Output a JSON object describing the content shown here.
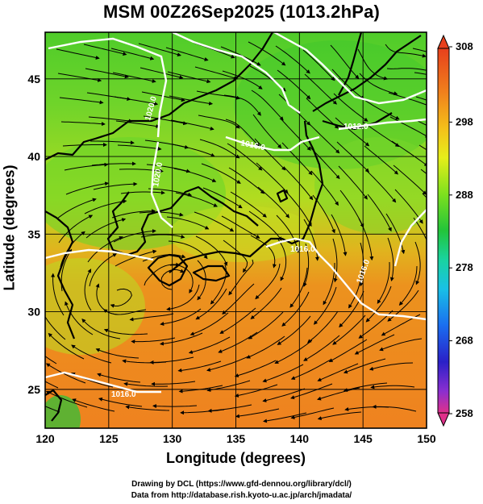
{
  "title": "MSM 00Z26Sep2025 (1013.2hPa)",
  "axes": {
    "xlabel": "Longitude (degrees)",
    "ylabel": "Latitude  (degrees)",
    "x_ticks": [
      "120",
      "125",
      "130",
      "135",
      "140",
      "145",
      "150"
    ],
    "y_ticks": [
      "25",
      "30",
      "35",
      "40",
      "45"
    ]
  },
  "colorbar": {
    "labels": [
      "308",
      "298",
      "288",
      "278",
      "268",
      "258"
    ],
    "colors": [
      "#e0308a",
      "#8a2fd0",
      "#2a20c8",
      "#1a6ef0",
      "#19c0e6",
      "#19d3a0",
      "#22c43a",
      "#7ee01e",
      "#e6ee1a",
      "#f4c01a",
      "#f0801c",
      "#e8401c"
    ]
  },
  "contours": {
    "labels": [
      "1020.0",
      "1020.0",
      "1016.0",
      "1012.0",
      "1016.0",
      "1016.0",
      "1016.0"
    ],
    "color": "#ffffff"
  },
  "map": {
    "lon_range": [
      120,
      150
    ],
    "lat_range": [
      22.5,
      48
    ],
    "colors": {
      "north": "#5fd22a",
      "mid": "#b6e01f",
      "south": "#f08a1e",
      "grid": "#000000",
      "coast": "#000000"
    }
  },
  "credits": {
    "line1": "Drawing by DCL (https://www.gfd-dennou.org/library/dcl/)",
    "line2": "Data from http://database.rish.kyoto-u.ac.jp/arch/jmadata/"
  }
}
